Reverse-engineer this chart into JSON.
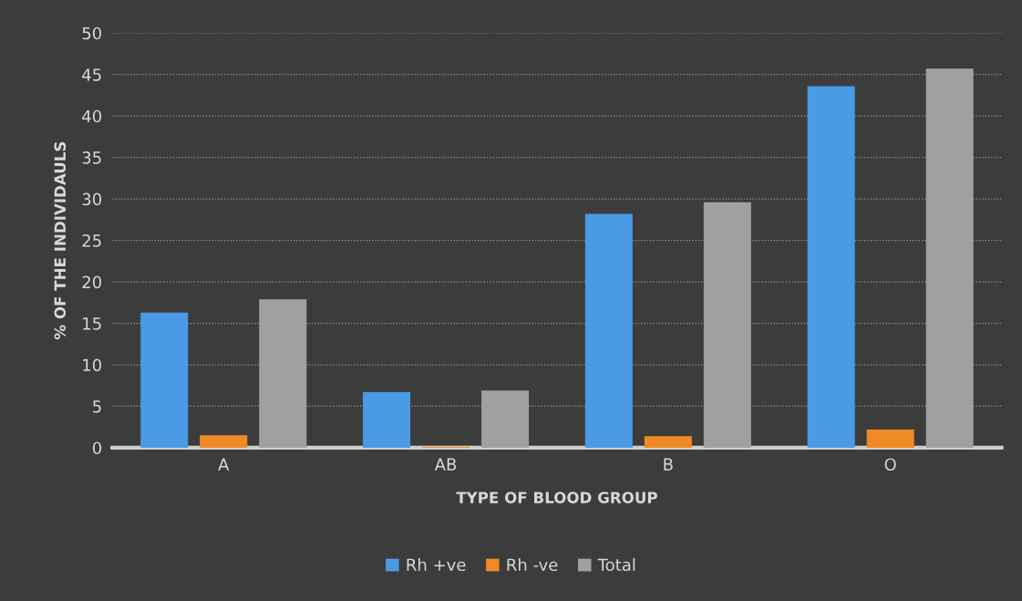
{
  "chart_data": {
    "type": "bar",
    "xlabel": "TYPE OF BLOOD GROUP",
    "ylabel": "% OF THE INDIVIDAULS",
    "categories": [
      "A",
      "AB",
      "B",
      "O"
    ],
    "series": [
      {
        "name": "Rh +ve",
        "color": "#4a9ae6",
        "values": [
          16.3,
          6.7,
          28.2,
          43.6
        ]
      },
      {
        "name": "Rh -ve",
        "color": "#f08a24",
        "values": [
          1.5,
          0.1,
          1.4,
          2.2
        ]
      },
      {
        "name": "Total",
        "color": "#a0a0a0",
        "values": [
          17.9,
          6.9,
          29.6,
          45.7
        ]
      }
    ],
    "ylim": [
      0,
      50
    ],
    "yticks": [
      0,
      5,
      10,
      15,
      20,
      25,
      30,
      35,
      40,
      45,
      50
    ],
    "grid": "y",
    "legend": "bottom"
  }
}
